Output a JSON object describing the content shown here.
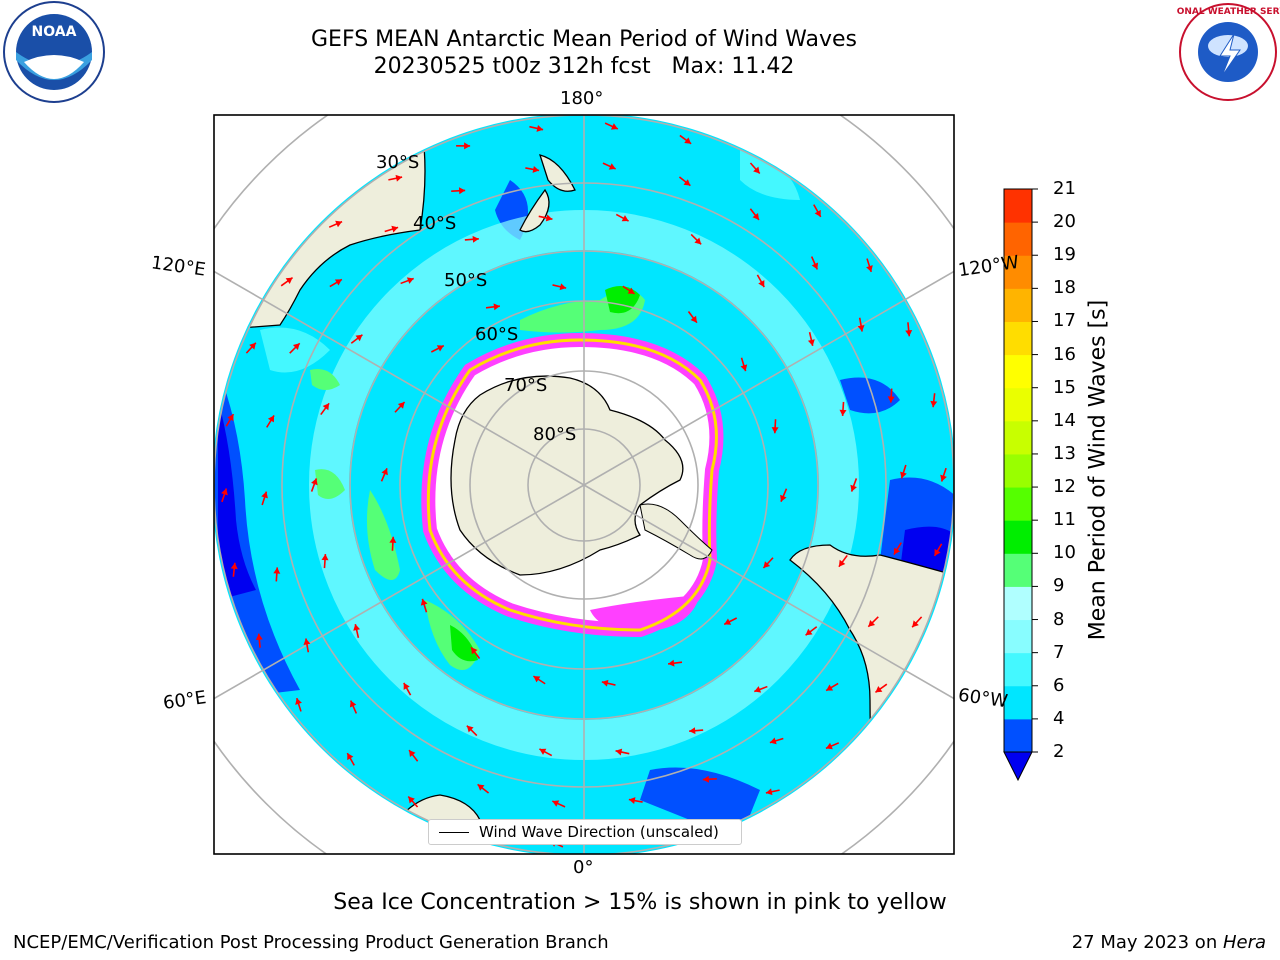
{
  "title": {
    "line1": "GEFS MEAN Antarctic Mean Period of Wind Waves",
    "line2": "20230525 t00z 312h fcst   Max: 11.42"
  },
  "logos": {
    "left": "NOAA",
    "right": "NATIONAL WEATHER SERVICE"
  },
  "map": {
    "projection": "south-polar-stereographic",
    "longitude_labels": {
      "top": "180°",
      "bottom": "0°",
      "left_upper": "120°E",
      "right_upper": "120°W",
      "left_lower": "60°E",
      "right_lower": "60°W"
    },
    "latitude_labels": [
      "30°S",
      "40°S",
      "50°S",
      "60°S",
      "70°S",
      "80°S"
    ],
    "land_color": "#eeeedc",
    "arrow_color": "#ff0000"
  },
  "legend": {
    "label": "Wind Wave Direction (unscaled)"
  },
  "colorbar": {
    "label": "Mean Period of Wind Waves [s]",
    "ticks": [
      "2",
      "4",
      "6",
      "7",
      "8",
      "9",
      "10",
      "11",
      "12",
      "13",
      "14",
      "15",
      "16",
      "17",
      "18",
      "19",
      "20",
      "21"
    ],
    "colors": [
      "#0050ff",
      "#00e6ff",
      "#44f8ff",
      "#88fdff",
      "#b0ffff",
      "#55ff77",
      "#00ee00",
      "#55ff00",
      "#99ff00",
      "#c8ff00",
      "#eaff00",
      "#ffff00",
      "#ffdd00",
      "#ffb400",
      "#ff8c00",
      "#ff6400",
      "#ff3200",
      "#ff0000"
    ],
    "extend_color": "#0000f0"
  },
  "note": "Sea Ice Concentration > 15% is shown in pink to yellow",
  "footer": {
    "left": "NCEP/EMC/Verification Post Processing Product Generation Branch",
    "right_date": "27 May 2023 on ",
    "right_machine": "Hera"
  }
}
